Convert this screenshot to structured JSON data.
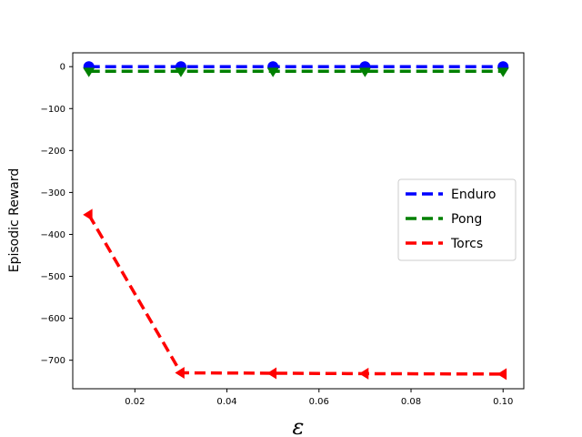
{
  "chart_data": {
    "type": "line",
    "title": "",
    "xlabel": "ε",
    "ylabel": "Episodic Reward",
    "xlim": [
      0.0065,
      0.1045
    ],
    "ylim": [
      -768,
      33
    ],
    "x_ticks": [
      0.02,
      0.04,
      0.06,
      0.08,
      0.1
    ],
    "x_tick_labels": [
      "0.02",
      "0.04",
      "0.06",
      "0.08",
      "0.10"
    ],
    "y_ticks": [
      0,
      -100,
      -200,
      -300,
      -400,
      -500,
      -600,
      -700
    ],
    "y_tick_labels": [
      "0",
      "−100",
      "−200",
      "−300",
      "−400",
      "−500",
      "−600",
      "−700"
    ],
    "grid": false,
    "legend_position": "center-right",
    "x": [
      0.01,
      0.03,
      0.05,
      0.07,
      0.1
    ],
    "series": [
      {
        "name": "Enduro",
        "values": [
          0,
          0,
          0,
          0,
          0
        ],
        "color": "#0000ff",
        "marker": "circle"
      },
      {
        "name": "Pong",
        "values": [
          -11,
          -11,
          -11,
          -11,
          -11
        ],
        "color": "#008000",
        "marker": "triangle-down"
      },
      {
        "name": "Torcs",
        "values": [
          -353,
          -730,
          -731,
          -732,
          -733
        ],
        "color": "#ff0000",
        "marker": "triangle-left"
      }
    ]
  }
}
